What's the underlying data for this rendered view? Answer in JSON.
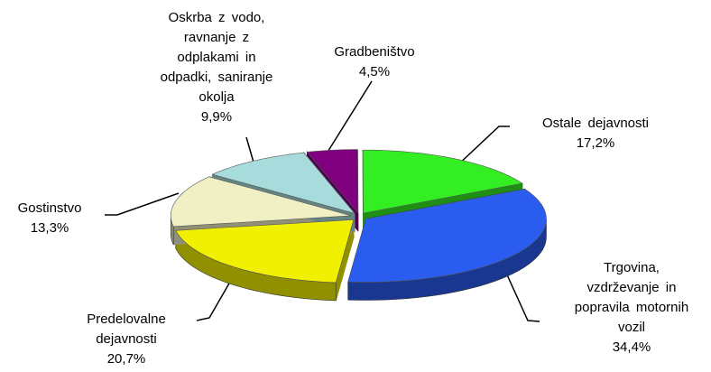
{
  "chart_data": {
    "type": "pie",
    "categories": [
      "Gradbeništvo",
      "Ostale dejavnosti",
      "Trgovina,\nvzdrževanje in\npopravila motornih\nvozil",
      "Predelovalne\ndejavnosti",
      "Gostinstvo",
      "Oskrba z vodo,\nravnanje z\nodplakami in\nodpadki, saniranje\nokolja"
    ],
    "values": [
      4.5,
      17.2,
      34.4,
      20.7,
      13.3,
      9.9
    ],
    "value_labels": [
      "4,5%",
      "17,2%",
      "34,4%",
      "20,7%",
      "13,3%",
      "9,9%"
    ],
    "colors": [
      "#800080",
      "#33ee22",
      "#2a5cf0",
      "#f0f000",
      "#f0f0c4",
      "#a8dcdc"
    ]
  }
}
